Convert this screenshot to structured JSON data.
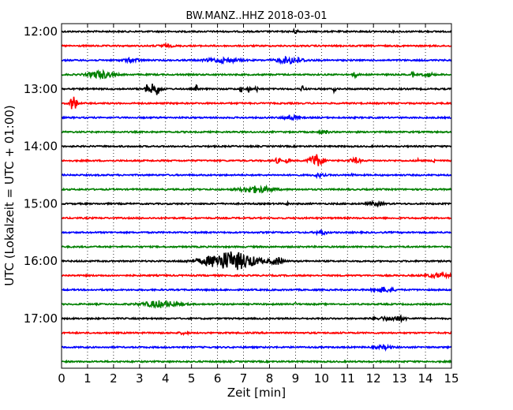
{
  "chart_data": {
    "type": "line",
    "title": "BW.MANZ..HHZ 2018-03-01",
    "xlabel": "Zeit  [min]",
    "ylabel": "UTC (Lokalzeit = UTC + 01:00)",
    "xlim": [
      0,
      15
    ],
    "x_ticks": [
      0,
      1,
      2,
      3,
      4,
      5,
      6,
      7,
      8,
      9,
      10,
      11,
      12,
      13,
      14,
      15
    ],
    "x_tick_labels": [
      "0",
      "1",
      "2",
      "3",
      "4",
      "5",
      "6",
      "7",
      "8",
      "9",
      "10",
      "11",
      "12",
      "13",
      "14",
      "15"
    ],
    "y_tick_labels": [
      "12:00",
      "13:00",
      "14:00",
      "15:00",
      "16:00",
      "17:00"
    ],
    "y_tick_trace_index": [
      0,
      4,
      8,
      12,
      16,
      20
    ],
    "trace_interval_minutes": 15,
    "grid": "vertical dotted",
    "trace_colors": [
      "#000000",
      "#ff0000",
      "#0000ff",
      "#008000"
    ],
    "traces": [
      {
        "start": "12:00",
        "events": [
          {
            "t": 9.0,
            "amp": 0.35,
            "dur": 0.3
          }
        ]
      },
      {
        "start": "12:15",
        "events": [
          {
            "t": 4.0,
            "amp": 0.3,
            "dur": 0.5
          }
        ]
      },
      {
        "start": "12:30",
        "events": [
          {
            "t": 2.7,
            "amp": 0.45,
            "dur": 0.6
          },
          {
            "t": 6.2,
            "amp": 0.55,
            "dur": 1.2
          },
          {
            "t": 8.8,
            "amp": 0.8,
            "dur": 1.0
          }
        ]
      },
      {
        "start": "12:45",
        "events": [
          {
            "t": 1.5,
            "amp": 0.9,
            "dur": 0.9
          },
          {
            "t": 11.3,
            "amp": 0.6,
            "dur": 0.2
          },
          {
            "t": 13.5,
            "amp": 0.7,
            "dur": 0.1
          },
          {
            "t": 14.1,
            "amp": 0.5,
            "dur": 0.4
          }
        ]
      },
      {
        "start": "13:00",
        "events": [
          {
            "t": 3.25,
            "amp": 1.2,
            "dur": 0.1
          },
          {
            "t": 3.6,
            "amp": 1.6,
            "dur": 0.4
          },
          {
            "t": 5.2,
            "amp": 1.0,
            "dur": 0.06
          },
          {
            "t": 6.9,
            "amp": 1.0,
            "dur": 0.06
          },
          {
            "t": 7.2,
            "amp": 1.0,
            "dur": 0.06
          },
          {
            "t": 7.5,
            "amp": 1.0,
            "dur": 0.06
          },
          {
            "t": 9.3,
            "amp": 0.9,
            "dur": 0.15
          },
          {
            "t": 10.5,
            "amp": 0.8,
            "dur": 0.08
          }
        ]
      },
      {
        "start": "13:15",
        "events": [
          {
            "t": 0.45,
            "amp": 2.0,
            "dur": 0.25
          }
        ]
      },
      {
        "start": "13:30",
        "events": [
          {
            "t": 8.8,
            "amp": 0.6,
            "dur": 0.5
          }
        ]
      },
      {
        "start": "13:45",
        "events": [
          {
            "t": 10.1,
            "amp": 0.5,
            "dur": 0.3
          }
        ]
      },
      {
        "start": "14:00",
        "events": []
      },
      {
        "start": "14:15",
        "events": [
          {
            "t": 8.3,
            "amp": 0.5,
            "dur": 0.3
          },
          {
            "t": 8.7,
            "amp": 0.6,
            "dur": 0.15
          },
          {
            "t": 9.8,
            "amp": 1.6,
            "dur": 0.5
          },
          {
            "t": 11.3,
            "amp": 0.6,
            "dur": 0.4
          },
          {
            "t": 13.75,
            "amp": 1.0,
            "dur": 0.08
          },
          {
            "t": 14.35,
            "amp": 1.2,
            "dur": 0.08
          }
        ]
      },
      {
        "start": "14:30",
        "events": [
          {
            "t": 9.9,
            "amp": 0.4,
            "dur": 0.4
          },
          {
            "t": 11.2,
            "amp": 0.4,
            "dur": 0.1
          }
        ]
      },
      {
        "start": "14:45",
        "events": [
          {
            "t": 7.5,
            "amp": 0.8,
            "dur": 1.2
          }
        ]
      },
      {
        "start": "15:00",
        "events": [
          {
            "t": 8.7,
            "amp": 0.35,
            "dur": 0.1
          },
          {
            "t": 12.1,
            "amp": 0.4,
            "dur": 0.6
          }
        ]
      },
      {
        "start": "15:15",
        "events": []
      },
      {
        "start": "15:30",
        "events": [
          {
            "t": 10.0,
            "amp": 0.5,
            "dur": 0.4
          }
        ]
      },
      {
        "start": "15:45",
        "events": []
      },
      {
        "start": "16:00",
        "events": [
          {
            "t": 6.5,
            "amp": 2.3,
            "dur": 2.0
          },
          {
            "t": 8.3,
            "amp": 0.9,
            "dur": 0.4
          }
        ]
      },
      {
        "start": "16:15",
        "events": [
          {
            "t": 14.5,
            "amp": 0.5,
            "dur": 0.8
          }
        ]
      },
      {
        "start": "16:30",
        "events": [
          {
            "t": 12.4,
            "amp": 0.6,
            "dur": 0.7
          }
        ]
      },
      {
        "start": "16:45",
        "events": [
          {
            "t": 3.8,
            "amp": 0.8,
            "dur": 1.3
          },
          {
            "t": 9.0,
            "amp": 0.3,
            "dur": 0.1
          }
        ]
      },
      {
        "start": "17:00",
        "events": [
          {
            "t": 12.5,
            "amp": 0.35,
            "dur": 1.0
          },
          {
            "t": 13.0,
            "amp": 0.45,
            "dur": 0.5
          }
        ]
      },
      {
        "start": "17:15",
        "events": [
          {
            "t": 4.7,
            "amp": 0.3,
            "dur": 0.3
          }
        ]
      },
      {
        "start": "17:30",
        "events": [
          {
            "t": 12.4,
            "amp": 0.4,
            "dur": 0.6
          }
        ]
      },
      {
        "start": "17:45",
        "events": []
      }
    ]
  }
}
